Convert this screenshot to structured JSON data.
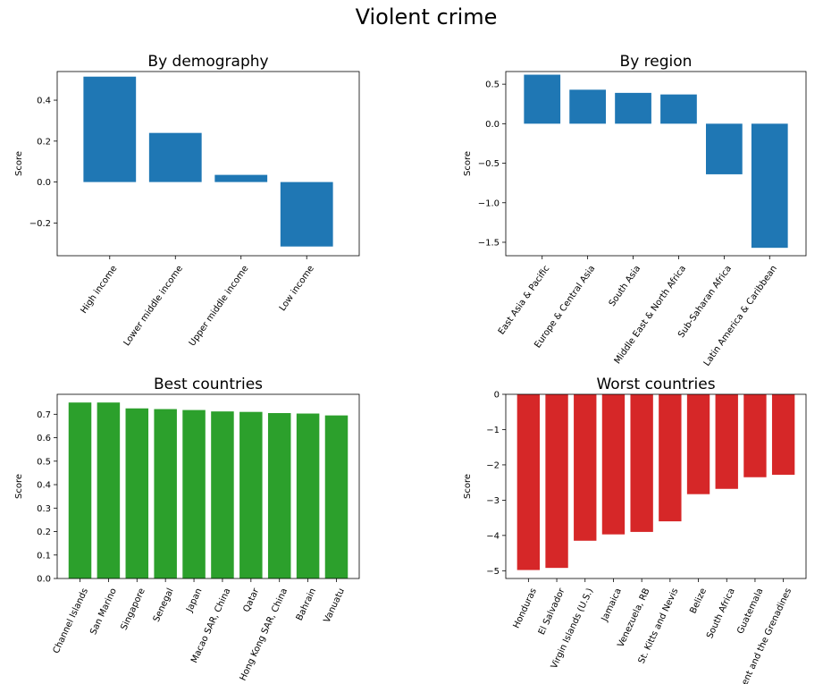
{
  "figure": {
    "title": "Violent crime"
  },
  "chart_data": [
    {
      "type": "bar",
      "title": "By demography",
      "ylabel": "Score",
      "xlabel": "",
      "color": "#1f77b4",
      "categories": [
        "High income",
        "Lower middle income",
        "Upper middle income",
        "Low income"
      ],
      "values": [
        0.515,
        0.24,
        0.035,
        -0.315
      ],
      "ylim": [
        -0.36,
        0.54
      ],
      "yticks": [
        -0.2,
        0.0,
        0.2,
        0.4
      ],
      "ytick_labels": [
        "−0.2",
        "0.0",
        "0.2",
        "0.4"
      ],
      "xtick_rotation": 55,
      "grid": false
    },
    {
      "type": "bar",
      "title": "By region",
      "ylabel": "Score",
      "xlabel": "",
      "color": "#1f77b4",
      "categories": [
        "East Asia & Pacific",
        "Europe & Central Asia",
        "South Asia",
        "Middle East & North Africa",
        "Sub-Saharan Africa",
        "Latin America & Caribbean"
      ],
      "values": [
        0.62,
        0.43,
        0.39,
        0.37,
        -0.64,
        -1.57
      ],
      "ylim": [
        -1.67,
        0.66
      ],
      "yticks": [
        -1.5,
        -1.0,
        -0.5,
        0.0,
        0.5
      ],
      "ytick_labels": [
        "−1.5",
        "−1.0",
        "−0.5",
        "0.0",
        "0.5"
      ],
      "xtick_rotation": 55,
      "grid": false
    },
    {
      "type": "bar",
      "title": "Best countries",
      "ylabel": "Score",
      "xlabel": "",
      "color": "#2ca02c",
      "categories": [
        "Channel Islands",
        "San Marino",
        "Singapore",
        "Senegal",
        "Japan",
        "Macao SAR, China",
        "Qatar",
        "Hong Kong SAR, China",
        "Bahrain",
        "Vanuatu"
      ],
      "values": [
        0.75,
        0.75,
        0.725,
        0.722,
        0.718,
        0.712,
        0.71,
        0.705,
        0.703,
        0.695
      ],
      "ylim": [
        0,
        0.785
      ],
      "yticks": [
        0.0,
        0.1,
        0.2,
        0.3,
        0.4,
        0.5,
        0.6,
        0.7
      ],
      "ytick_labels": [
        "0.0",
        "0.1",
        "0.2",
        "0.3",
        "0.4",
        "0.5",
        "0.6",
        "0.7"
      ],
      "xtick_rotation": 65,
      "grid": false
    },
    {
      "type": "bar",
      "title": "Worst countries",
      "ylabel": "Score",
      "xlabel": "",
      "color": "#d62728",
      "categories": [
        "Honduras",
        "El Salvador",
        "Virgin Islands (U.S.)",
        "Jamaica",
        "Venezuela, RB",
        "St. Kitts and Nevis",
        "Belize",
        "South Africa",
        "Guatemala",
        "St. Vincent and the Grenadines"
      ],
      "values": [
        -4.98,
        -4.92,
        -4.15,
        -3.97,
        -3.9,
        -3.6,
        -2.83,
        -2.68,
        -2.35,
        -2.28
      ],
      "ylim": [
        -5.22,
        0
      ],
      "yticks": [
        -5,
        -4,
        -3,
        -2,
        -1,
        0
      ],
      "ytick_labels": [
        "−5",
        "−4",
        "−3",
        "−2",
        "−1",
        "0"
      ],
      "xtick_rotation": 65,
      "grid": false
    }
  ]
}
